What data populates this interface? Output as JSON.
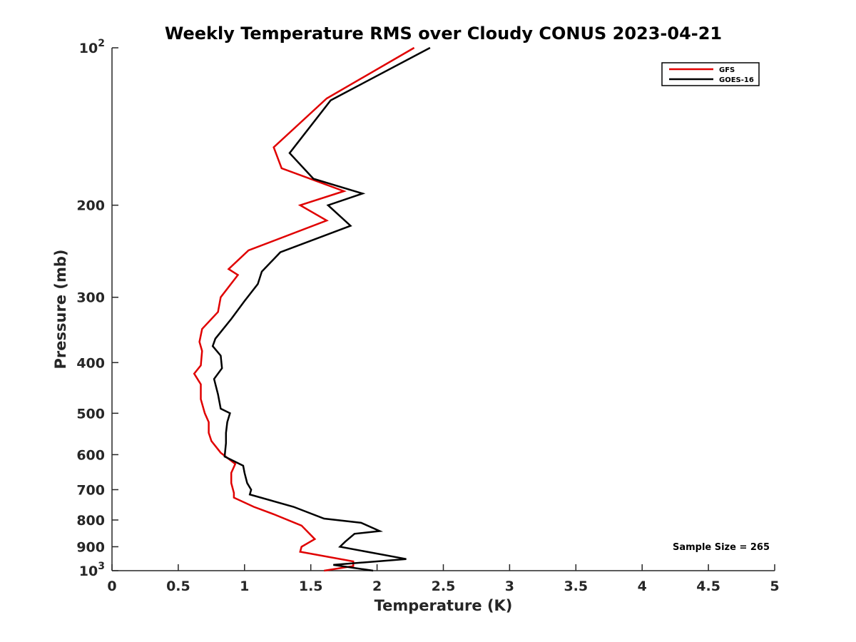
{
  "chart_data": {
    "type": "line",
    "title": "Weekly Temperature RMS over Cloudy CONUS 2023-04-21",
    "xlabel": "Temperature (K)",
    "ylabel": "Pressure (mb)",
    "xlim": [
      0,
      5
    ],
    "ylim": [
      1000,
      100
    ],
    "y_scale": "log",
    "y_reversed": true,
    "grid": false,
    "legend_position": "top-right",
    "x_ticks": [
      0,
      0.5,
      1,
      1.5,
      2,
      2.5,
      3,
      3.5,
      4,
      4.5,
      5
    ],
    "x_tick_labels": [
      "0",
      "0.5",
      "1",
      "1.5",
      "2",
      "2.5",
      "3",
      "3.5",
      "4",
      "4.5",
      "5"
    ],
    "y_ticks": [
      {
        "value": 100,
        "base": "10",
        "exp": "2"
      },
      {
        "value": 200,
        "label": "200"
      },
      {
        "value": 300,
        "label": "300"
      },
      {
        "value": 400,
        "label": "400"
      },
      {
        "value": 500,
        "label": "500"
      },
      {
        "value": 600,
        "label": "600"
      },
      {
        "value": 700,
        "label": "700"
      },
      {
        "value": 800,
        "label": "800"
      },
      {
        "value": 900,
        "label": "900"
      },
      {
        "value": 1000,
        "base": "10",
        "exp": "3"
      }
    ],
    "annotation": "Sample Size = 265",
    "series": [
      {
        "name": "GFS",
        "color": "#e00000",
        "points": [
          [
            2.28,
            100
          ],
          [
            1.62,
            125
          ],
          [
            1.22,
            155
          ],
          [
            1.28,
            170
          ],
          [
            1.75,
            188
          ],
          [
            1.42,
            200
          ],
          [
            1.62,
            214
          ],
          [
            1.03,
            244
          ],
          [
            0.88,
            265
          ],
          [
            0.95,
            272
          ],
          [
            0.82,
            300
          ],
          [
            0.8,
            320
          ],
          [
            0.68,
            345
          ],
          [
            0.66,
            365
          ],
          [
            0.68,
            380
          ],
          [
            0.67,
            405
          ],
          [
            0.62,
            420
          ],
          [
            0.67,
            440
          ],
          [
            0.67,
            470
          ],
          [
            0.7,
            500
          ],
          [
            0.73,
            520
          ],
          [
            0.73,
            545
          ],
          [
            0.75,
            565
          ],
          [
            0.82,
            595
          ],
          [
            0.93,
            625
          ],
          [
            0.9,
            650
          ],
          [
            0.9,
            680
          ],
          [
            0.92,
            710
          ],
          [
            0.92,
            725
          ],
          [
            1.07,
            755
          ],
          [
            1.22,
            780
          ],
          [
            1.43,
            820
          ],
          [
            1.53,
            870
          ],
          [
            1.43,
            900
          ],
          [
            1.42,
            920
          ],
          [
            1.82,
            960
          ],
          [
            1.82,
            980
          ],
          [
            1.6,
            1000
          ]
        ]
      },
      {
        "name": "GOES-16",
        "color": "#000000",
        "points": [
          [
            2.4,
            100
          ],
          [
            1.65,
            126
          ],
          [
            1.34,
            159
          ],
          [
            1.52,
            178
          ],
          [
            1.89,
            190
          ],
          [
            1.63,
            200
          ],
          [
            1.8,
            219
          ],
          [
            1.27,
            246
          ],
          [
            1.13,
            268
          ],
          [
            1.1,
            283
          ],
          [
            1.0,
            305
          ],
          [
            0.9,
            330
          ],
          [
            0.78,
            360
          ],
          [
            0.76,
            372
          ],
          [
            0.82,
            388
          ],
          [
            0.83,
            410
          ],
          [
            0.77,
            430
          ],
          [
            0.8,
            460
          ],
          [
            0.82,
            490
          ],
          [
            0.89,
            500
          ],
          [
            0.87,
            520
          ],
          [
            0.86,
            545
          ],
          [
            0.86,
            570
          ],
          [
            0.85,
            605
          ],
          [
            0.99,
            630
          ],
          [
            1.0,
            650
          ],
          [
            1.02,
            680
          ],
          [
            1.05,
            700
          ],
          [
            1.04,
            715
          ],
          [
            1.37,
            755
          ],
          [
            1.6,
            795
          ],
          [
            1.88,
            810
          ],
          [
            2.02,
            840
          ],
          [
            1.83,
            850
          ],
          [
            1.76,
            880
          ],
          [
            1.72,
            900
          ],
          [
            2.22,
            950
          ],
          [
            1.67,
            975
          ],
          [
            1.97,
            1000
          ]
        ]
      }
    ]
  }
}
